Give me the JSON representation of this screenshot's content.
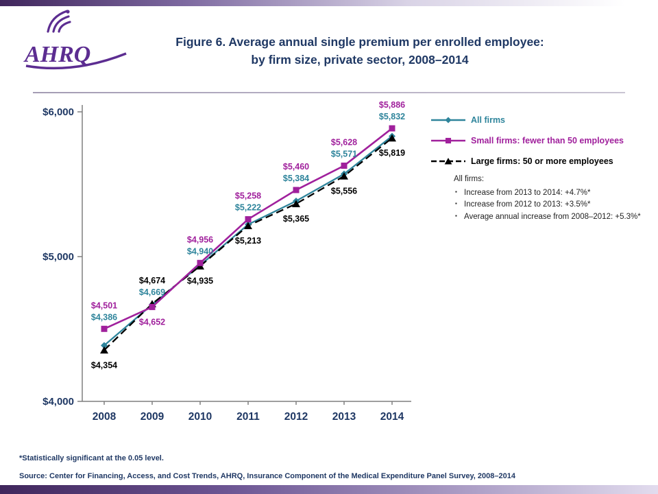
{
  "page": {
    "logo_text": "AHRQ",
    "title_line1": "Figure 6.  Average annual single premium per enrolled employee:",
    "title_line2": "by firm size, private sector, 2008–2014",
    "footnote": "*Statistically significant at the 0.05 level.",
    "source": "Source: Center for Financing, Access, and Cost Trends, AHRQ, Insurance Component of the Medical Expenditure Panel Survey, 2008–2014"
  },
  "annotation": {
    "heading": "All firms:",
    "bullets": [
      "Increase from 2013 to 2014: +4.7%*",
      "Increase from 2012 to 2013: +3.5%*",
      "Average annual increase from 2008–2012: +5.3%*"
    ]
  },
  "colors": {
    "title": "#1F3864",
    "axis": "#7F7F7F",
    "all_firms": "#2E849B",
    "small_firms": "#A0209C",
    "large_firms": "#000000",
    "logo_purple": "#5C2D91"
  },
  "chart_data": {
    "type": "line",
    "title": "Average annual single premium per enrolled employee, by firm size, private sector, 2008–2014",
    "categories": [
      "2008",
      "2009",
      "2010",
      "2011",
      "2012",
      "2013",
      "2014"
    ],
    "ylim": [
      4000,
      6000
    ],
    "grid": false,
    "legend_position": "right",
    "yticks": [
      {
        "value": 4000,
        "label": "$4,000"
      },
      {
        "value": 5000,
        "label": "$5,000"
      },
      {
        "value": 6000,
        "label": "$6,000"
      }
    ],
    "series": [
      {
        "name": "All firms",
        "color": "#2E849B",
        "marker": "diamond",
        "line": "solid",
        "values": [
          4386,
          4669,
          4940,
          5222,
          5384,
          5571,
          5832
        ],
        "labels": [
          "$4,386",
          "$4,669",
          "$4,940",
          "$5,222",
          "$5,384",
          "$5,571",
          "$5,832"
        ]
      },
      {
        "name": "Small firms: fewer than 50 employees",
        "color": "#A0209C",
        "marker": "square",
        "line": "solid",
        "values": [
          4501,
          4652,
          4956,
          5258,
          5460,
          5628,
          5886
        ],
        "labels": [
          "$4,501",
          "$4,652",
          "$4,956",
          "$5,258",
          "$5,460",
          "$5,628",
          "$5,886"
        ]
      },
      {
        "name": "Large firms: 50 or more employees",
        "color": "#000000",
        "marker": "triangle",
        "line": "dashed",
        "values": [
          4354,
          4674,
          4935,
          5213,
          5365,
          5556,
          5819
        ],
        "labels": [
          "$4,354",
          "$4,674",
          "$4,935",
          "$5,213",
          "$5,365",
          "$5,556",
          "$5,819"
        ]
      }
    ]
  }
}
